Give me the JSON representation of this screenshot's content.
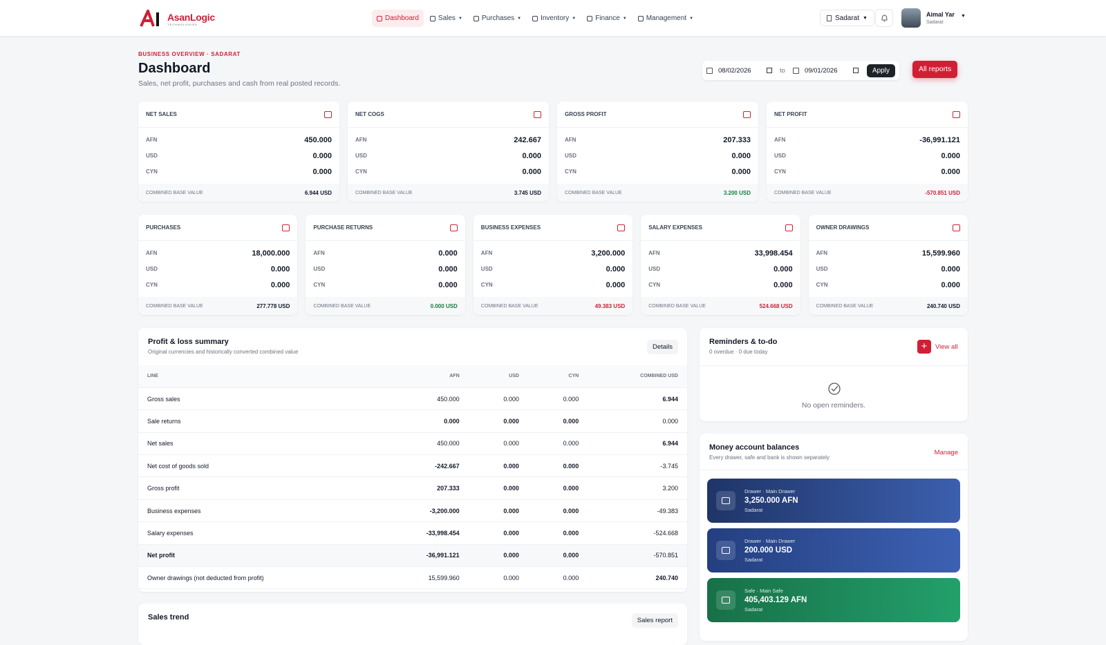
{
  "nav": {
    "brand": "AsanLogic",
    "brand_sub": "TECHNOLOGIES",
    "items": [
      "Dashboard",
      "Sales",
      "Purchases",
      "Inventory",
      "Finance",
      "Management"
    ],
    "branch": "Sadarat",
    "user_name": "Aimal Yar",
    "user_branch": "Sadarat"
  },
  "header": {
    "eyebrow": "BUSINESS OVERVIEW · SADARAT",
    "title": "Dashboard",
    "subtitle": "Sales, net profit, purchases and cash from real posted records.",
    "date_from": "08/02/2026",
    "to": "to",
    "date_to": "09/01/2026",
    "apply": "Apply",
    "all_reports": "All reports"
  },
  "cards_top": [
    {
      "title": "NET SALES",
      "rows": [
        {
          "cur": "AFN",
          "value": "450.000"
        },
        {
          "cur": "USD",
          "value": "0.000"
        },
        {
          "cur": "CYN",
          "value": "0.000"
        }
      ],
      "base_label": "COMBINED BASE VALUE",
      "base_value": "6.944 USD"
    },
    {
      "title": "NET COGS",
      "rows": [
        {
          "cur": "AFN",
          "value": "242.667"
        },
        {
          "cur": "USD",
          "value": "0.000"
        },
        {
          "cur": "CYN",
          "value": "0.000"
        }
      ],
      "base_label": "COMBINED BASE VALUE",
      "base_value": "3.745 USD"
    },
    {
      "title": "GROSS PROFIT",
      "rows": [
        {
          "cur": "AFN",
          "value": "207.333"
        },
        {
          "cur": "USD",
          "value": "0.000"
        },
        {
          "cur": "CYN",
          "value": "0.000"
        }
      ],
      "base_label": "COMBINED BASE VALUE",
      "base_value": "3.200 USD"
    },
    {
      "title": "NET PROFIT",
      "rows": [
        {
          "cur": "AFN",
          "value": "-36,991.121"
        },
        {
          "cur": "USD",
          "value": "0.000"
        },
        {
          "cur": "CYN",
          "value": "0.000"
        }
      ],
      "base_label": "COMBINED BASE VALUE",
      "base_value": "-570.851 USD"
    }
  ],
  "cards_bottom": [
    {
      "title": "PURCHASES",
      "rows": [
        {
          "cur": "AFN",
          "value": "18,000.000"
        },
        {
          "cur": "USD",
          "value": "0.000"
        },
        {
          "cur": "CYN",
          "value": "0.000"
        }
      ],
      "base_label": "COMBINED BASE VALUE",
      "base_value": "277.778 USD"
    },
    {
      "title": "PURCHASE RETURNS",
      "rows": [
        {
          "cur": "AFN",
          "value": "0.000"
        },
        {
          "cur": "USD",
          "value": "0.000"
        },
        {
          "cur": "CYN",
          "value": "0.000"
        }
      ],
      "base_label": "COMBINED BASE VALUE",
      "base_value": "0.000 USD"
    },
    {
      "title": "BUSINESS EXPENSES",
      "rows": [
        {
          "cur": "AFN",
          "value": "3,200.000"
        },
        {
          "cur": "USD",
          "value": "0.000"
        },
        {
          "cur": "CYN",
          "value": "0.000"
        }
      ],
      "base_label": "COMBINED BASE VALUE",
      "base_value": "49.383 USD"
    },
    {
      "title": "SALARY EXPENSES",
      "rows": [
        {
          "cur": "AFN",
          "value": "33,998.454"
        },
        {
          "cur": "USD",
          "value": "0.000"
        },
        {
          "cur": "CYN",
          "value": "0.000"
        }
      ],
      "base_label": "COMBINED BASE VALUE",
      "base_value": "524.668 USD"
    },
    {
      "title": "OWNER DRAWINGS",
      "rows": [
        {
          "cur": "AFN",
          "value": "15,599.960"
        },
        {
          "cur": "USD",
          "value": "0.000"
        },
        {
          "cur": "CYN",
          "value": "0.000"
        }
      ],
      "base_label": "COMBINED BASE VALUE",
      "base_value": "240.740 USD"
    }
  ],
  "pl": {
    "title": "Profit & loss summary",
    "subtitle": "Original currencies and historically converted combined value",
    "details": "Details",
    "columns": [
      "LINE",
      "AFN",
      "USD",
      "CYN",
      "COMBINED USD"
    ],
    "rows": [
      [
        "Gross sales",
        "450.000",
        "0.000",
        "0.000",
        "6.944"
      ],
      [
        "Sale returns",
        "0.000",
        "0.000",
        "0.000",
        "0.000"
      ],
      [
        "Net sales",
        "450.000",
        "0.000",
        "0.000",
        "6.944"
      ],
      [
        "Net cost of goods sold",
        "-242.667",
        "0.000",
        "0.000",
        "-3.745"
      ],
      [
        "Gross profit",
        "207.333",
        "0.000",
        "0.000",
        "3.200"
      ],
      [
        "Business expenses",
        "-3,200.000",
        "0.000",
        "0.000",
        "-49.383"
      ],
      [
        "Salary expenses",
        "-33,998.454",
        "0.000",
        "0.000",
        "-524.668"
      ],
      [
        "Net profit",
        "-36,991.121",
        "0.000",
        "0.000",
        "-570.851"
      ],
      [
        "Owner drawings (not deducted from profit)",
        "15,599.960",
        "0.000",
        "0.000",
        "240.740"
      ]
    ]
  },
  "reminders": {
    "title": "Reminders & to-do",
    "subtitle": "0 overdue · 0 due today",
    "view_all": "View all",
    "empty": "No open reminders."
  },
  "money": {
    "title": "Money account balances",
    "subtitle": "Every drawer, safe and bank is shown separately",
    "manage": "Manage",
    "accounts": [
      {
        "type": "Drawer · Main Drawer",
        "amount": "3,250.000 AFN",
        "branch": "Sadarat"
      },
      {
        "type": "Drawer · Main Drawer",
        "amount": "200.000 USD",
        "branch": "Sadarat"
      },
      {
        "type": "Safe · Main Safe",
        "amount": "405,403.129 AFN",
        "branch": "Sadarat"
      }
    ]
  },
  "sales_trend": {
    "title": "Sales trend",
    "button": "Sales report"
  }
}
